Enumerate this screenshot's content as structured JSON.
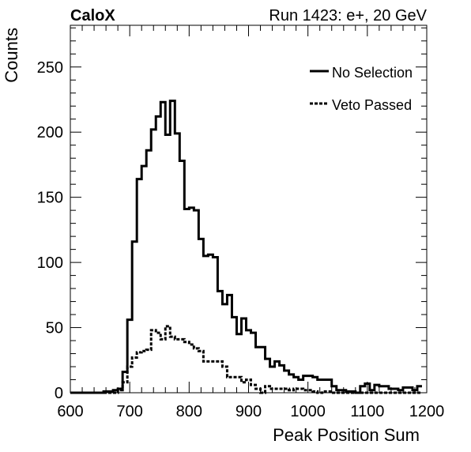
{
  "chart_data": {
    "type": "line",
    "title_left": "CaloX",
    "title_right": "Run 1423: e+, 20 GeV",
    "xlabel": "Peak Position Sum",
    "ylabel": "Counts",
    "xlim": [
      600,
      1200
    ],
    "ylim": [
      0,
      282
    ],
    "x_ticks": [
      600,
      700,
      800,
      900,
      1000,
      1100,
      1200
    ],
    "y_ticks": [
      0,
      50,
      100,
      150,
      200,
      250
    ],
    "bin_width": 8,
    "bin_start": 600,
    "legend_position": "top-right",
    "series": [
      {
        "name": "No Selection",
        "style": "solid",
        "values": [
          0,
          0,
          0,
          0,
          0,
          0,
          0,
          1,
          1,
          2,
          3,
          16,
          56,
          116,
          164,
          174,
          186,
          202,
          212,
          223,
          198,
          224,
          199,
          178,
          141,
          142,
          140,
          118,
          105,
          106,
          104,
          78,
          68,
          75,
          58,
          45,
          57,
          48,
          46,
          35,
          35,
          26,
          20,
          24,
          21,
          17,
          14,
          12,
          10,
          13,
          13,
          12,
          10,
          10,
          10,
          5,
          2,
          2,
          1,
          1,
          0,
          5,
          7,
          2,
          6,
          5,
          5,
          3,
          3,
          2,
          4,
          4,
          2,
          5
        ]
      },
      {
        "name": "Veto Passed",
        "style": "dashed",
        "values": [
          0,
          0,
          0,
          0,
          0,
          0,
          0,
          0,
          0,
          0,
          2,
          8,
          20,
          27,
          31,
          32,
          33,
          48,
          46,
          41,
          51,
          43,
          41,
          41,
          39,
          37,
          34,
          32,
          24,
          24,
          24,
          24,
          20,
          12,
          12,
          12,
          8,
          10,
          6,
          3,
          0,
          5,
          3,
          3,
          3,
          3,
          2,
          3,
          3,
          2,
          2,
          1,
          0,
          1,
          1,
          0,
          0,
          0,
          0,
          0,
          0,
          0,
          0,
          0,
          0,
          0,
          0,
          0,
          0,
          0,
          0,
          0,
          0,
          0
        ]
      }
    ]
  }
}
